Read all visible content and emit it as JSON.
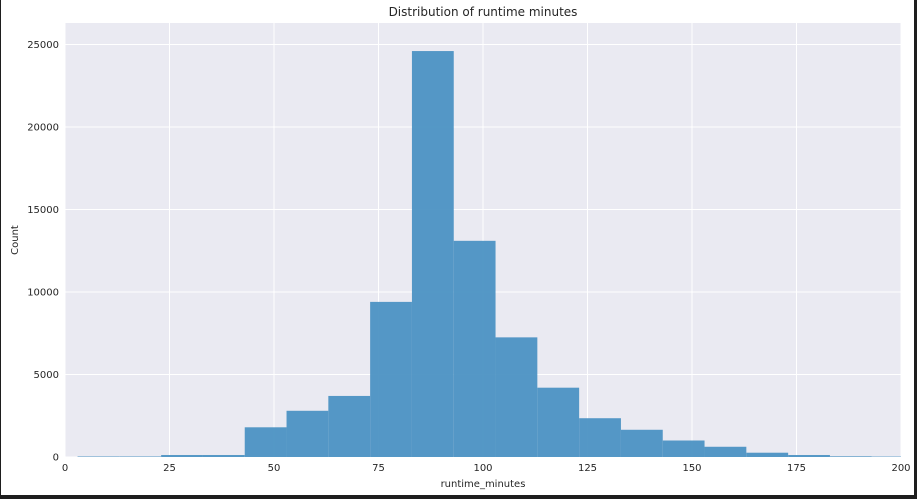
{
  "chart_data": {
    "type": "bar",
    "title": "Distribution of runtime minutes",
    "xlabel": "runtime_minutes",
    "ylabel": "Count",
    "xlim": [
      0,
      200
    ],
    "ylim": [
      0,
      26300
    ],
    "xticks": [
      0,
      25,
      50,
      75,
      100,
      125,
      150,
      175,
      200
    ],
    "yticks": [
      0,
      5000,
      10000,
      15000,
      20000,
      25000
    ],
    "grid": true,
    "bar_color": "#4c92c3",
    "background_color": "#eaeaf2",
    "bins": [
      {
        "x0": 3,
        "x1": 13,
        "value": 30
      },
      {
        "x0": 13,
        "x1": 23,
        "value": 30
      },
      {
        "x0": 23,
        "x1": 33,
        "value": 120
      },
      {
        "x0": 33,
        "x1": 43,
        "value": 120
      },
      {
        "x0": 43,
        "x1": 53,
        "value": 1800
      },
      {
        "x0": 53,
        "x1": 63,
        "value": 2800
      },
      {
        "x0": 63,
        "x1": 73,
        "value": 3700
      },
      {
        "x0": 73,
        "x1": 83,
        "value": 9400
      },
      {
        "x0": 83,
        "x1": 93,
        "value": 24600
      },
      {
        "x0": 93,
        "x1": 103,
        "value": 13100
      },
      {
        "x0": 103,
        "x1": 113,
        "value": 7250
      },
      {
        "x0": 113,
        "x1": 123,
        "value": 4200
      },
      {
        "x0": 123,
        "x1": 133,
        "value": 2350
      },
      {
        "x0": 133,
        "x1": 143,
        "value": 1650
      },
      {
        "x0": 143,
        "x1": 153,
        "value": 1000
      },
      {
        "x0": 153,
        "x1": 163,
        "value": 620
      },
      {
        "x0": 163,
        "x1": 173,
        "value": 260
      },
      {
        "x0": 173,
        "x1": 183,
        "value": 120
      },
      {
        "x0": 183,
        "x1": 193,
        "value": 40
      },
      {
        "x0": 193,
        "x1": 200,
        "value": 25
      }
    ]
  }
}
